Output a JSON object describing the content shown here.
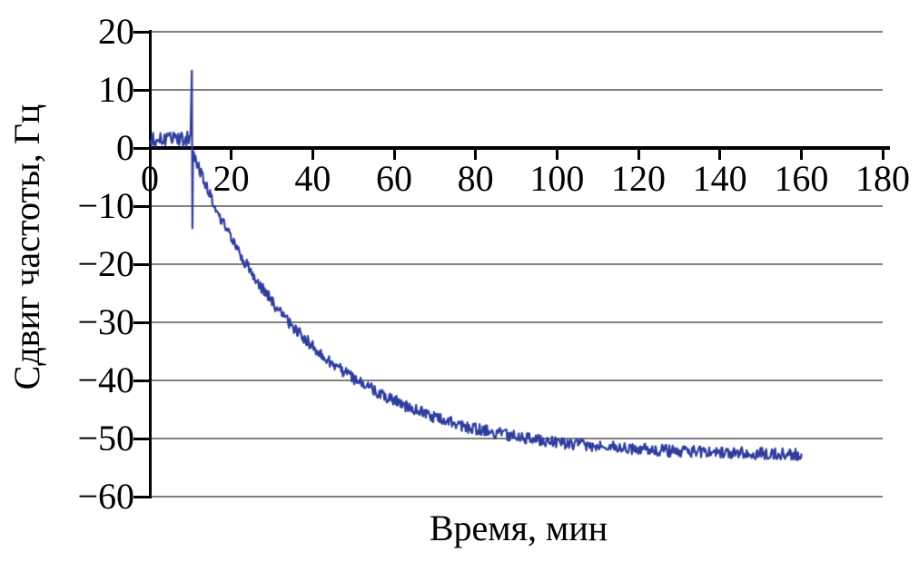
{
  "figure": {
    "background": "#ffffff",
    "text_color": "#000000"
  },
  "chart_data": {
    "type": "line",
    "title": "",
    "xlabel": "Время, мин",
    "ylabel": "Сдвиг частоты, Гц",
    "xlim": [
      0,
      180
    ],
    "ylim": [
      -60,
      20
    ],
    "grid": "horizontal",
    "legend": "none",
    "x_ticks": [
      0,
      20,
      40,
      60,
      80,
      100,
      120,
      140,
      160,
      180
    ],
    "x_tick_labels": [
      "0",
      "20",
      "40",
      "60",
      "80",
      "100",
      "120",
      "140",
      "160",
      "180"
    ],
    "y_ticks": [
      20,
      10,
      0,
      -10,
      -20,
      -30,
      -40,
      -50,
      -60
    ],
    "y_tick_labels": [
      "20",
      "10",
      "0",
      "−10",
      "−20",
      "−30",
      "−40",
      "−50",
      "−60"
    ],
    "colors": {
      "line": "#2e3c9e",
      "grid": "#808080",
      "axis": "#000000"
    },
    "series": [
      {
        "name": "frequency-shift-trace",
        "noise_amplitude": 1.0,
        "flat_noise_amplitude": 1.3,
        "spike": {
          "t_start": 10.0,
          "t_peak": 10.4,
          "t_end": 10.6,
          "peak_high": 13.3,
          "peak_low": -13.8
        },
        "points": [
          [
            0,
            1.2
          ],
          [
            1,
            1.6
          ],
          [
            2,
            1.3
          ],
          [
            3,
            1.7
          ],
          [
            4,
            1.2
          ],
          [
            5,
            1.6
          ],
          [
            6,
            1.4
          ],
          [
            7,
            1.8
          ],
          [
            8,
            1.3
          ],
          [
            9,
            1.6
          ],
          [
            10,
            1.8
          ],
          [
            10.6,
            -0.5
          ],
          [
            11,
            -1.6
          ],
          [
            12,
            -3.5
          ],
          [
            13,
            -5.2
          ],
          [
            14,
            -6.8
          ],
          [
            15,
            -8.4
          ],
          [
            16,
            -9.9
          ],
          [
            17,
            -11.4
          ],
          [
            18,
            -12.8
          ],
          [
            19,
            -14.2
          ],
          [
            20,
            -15.5
          ],
          [
            22,
            -18.0
          ],
          [
            24,
            -20.3
          ],
          [
            26,
            -22.5
          ],
          [
            28,
            -24.5
          ],
          [
            30,
            -26.4
          ],
          [
            32,
            -28.2
          ],
          [
            34,
            -29.8
          ],
          [
            36,
            -31.4
          ],
          [
            38,
            -32.8
          ],
          [
            40,
            -34.2
          ],
          [
            44,
            -36.6
          ],
          [
            48,
            -38.7
          ],
          [
            52,
            -40.5
          ],
          [
            56,
            -42.1
          ],
          [
            60,
            -43.5
          ],
          [
            66,
            -45.3
          ],
          [
            72,
            -46.8
          ],
          [
            78,
            -48.0
          ],
          [
            84,
            -48.9
          ],
          [
            90,
            -49.7
          ],
          [
            100,
            -50.7
          ],
          [
            110,
            -51.3
          ],
          [
            120,
            -51.8
          ],
          [
            130,
            -52.2
          ],
          [
            140,
            -52.4
          ],
          [
            150,
            -52.6
          ],
          [
            160,
            -52.7
          ]
        ]
      }
    ]
  }
}
